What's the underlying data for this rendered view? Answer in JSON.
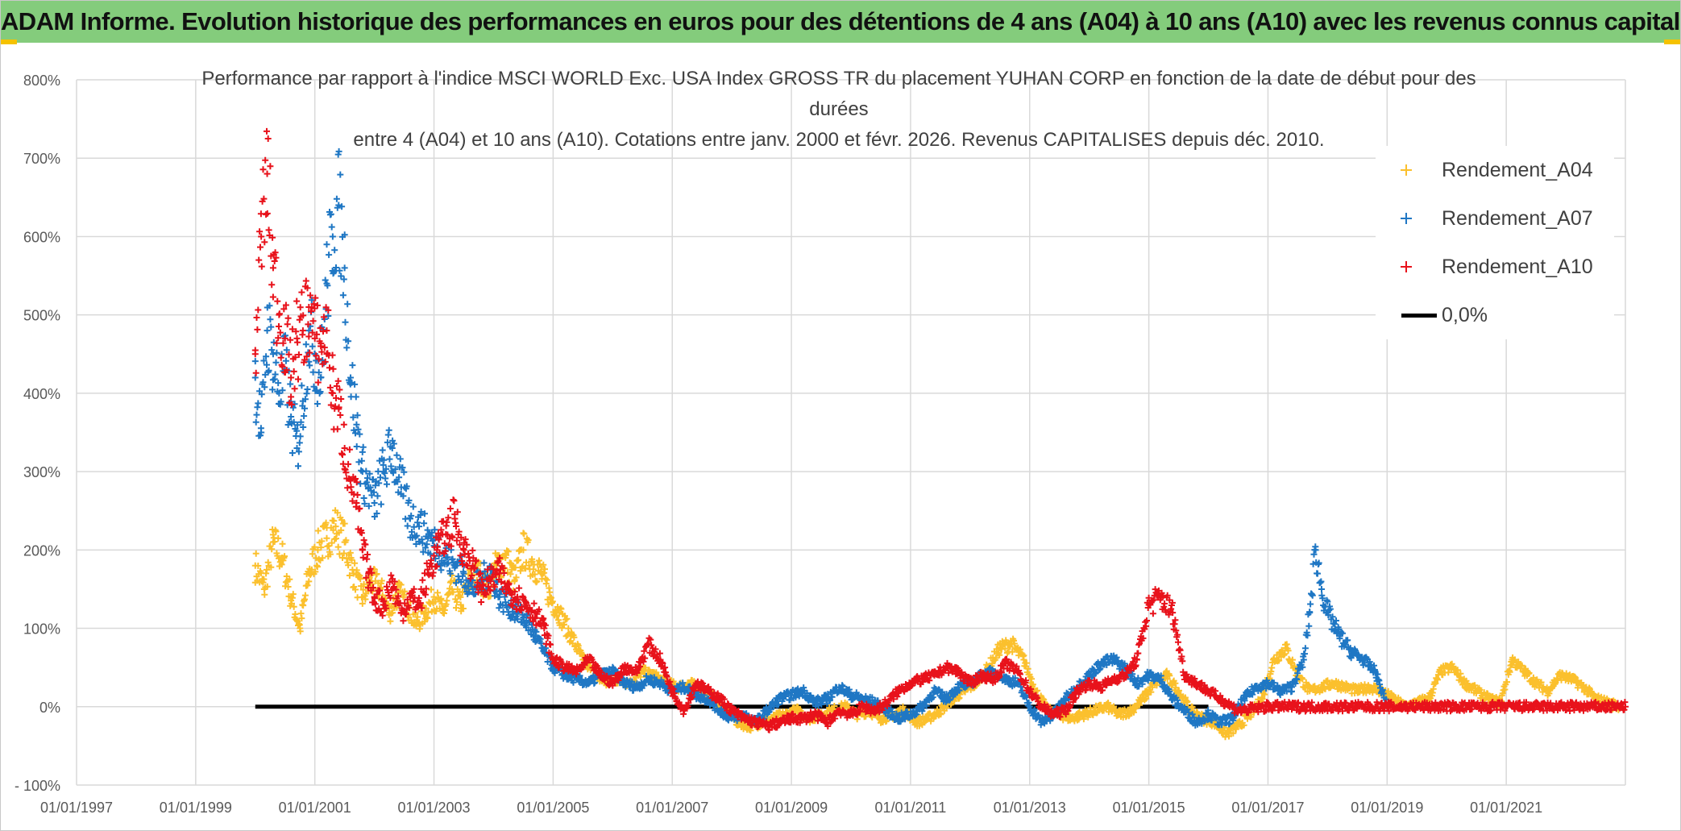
{
  "header": {
    "banner": "ADAM Informe. Evolution historique des performances en euros pour des détentions de 4 ans (A04) à 10 ans (A10) avec les revenus connus capitalisés"
  },
  "colors": {
    "banner_bg": "#84cc7c",
    "a04": "#fbc02d",
    "a07": "#1f77c4",
    "a10": "#e8121b",
    "zero": "#000000",
    "grid": "#d9d9d9"
  },
  "chart_data": {
    "type": "scatter",
    "title_lines": [
      "Performance par rapport à l'indice MSCI WORLD Exc. USA Index GROSS TR  du placement YUHAN CORP en fonction de la date de début pour des",
      "durées",
      "entre 4 (A04) et 10 ans (A10). Cotations entre janv. 2000 et févr. 2026. Revenus CAPITALISES depuis déc. 2010."
    ],
    "x_tick_labels": [
      "01/01/1997",
      "01/01/1999",
      "01/01/2001",
      "01/01/2003",
      "01/01/2005",
      "01/01/2007",
      "01/01/2009",
      "01/01/2011",
      "01/01/2013",
      "01/01/2015",
      "01/01/2017",
      "01/01/2019",
      "01/01/2021"
    ],
    "y_tick_labels": [
      "800%",
      "700%",
      "600%",
      "500%",
      "400%",
      "300%",
      "200%",
      "100%",
      "0%",
      "- 100%"
    ],
    "xlim": [
      1997.0,
      2023.0
    ],
    "ylim": [
      -100,
      800
    ],
    "grid": true,
    "legend_position": "top-right",
    "series": [
      {
        "name": "Rendement_A04",
        "color": "#fbc02d",
        "marker": "+",
        "x": [
          2000.0,
          2000.15,
          2000.3,
          2000.45,
          2000.6,
          2000.75,
          2000.9,
          2001.05,
          2001.2,
          2001.35,
          2001.5,
          2001.65,
          2001.8,
          2001.95,
          2002.1,
          2002.25,
          2002.4,
          2002.55,
          2002.7,
          2002.85,
          2003.0,
          2003.15,
          2003.3,
          2003.45,
          2003.6,
          2003.75,
          2003.9,
          2004.05,
          2004.2,
          2004.35,
          2004.5,
          2004.65,
          2004.8,
          2004.95,
          2005.1,
          2005.3,
          2005.5,
          2005.7,
          2005.9,
          2006.1,
          2006.3,
          2006.5,
          2006.7,
          2006.9,
          2007.1,
          2007.3,
          2007.5,
          2007.7,
          2007.9,
          2008.1,
          2008.3,
          2008.5,
          2008.7,
          2008.9,
          2009.1,
          2009.3,
          2009.5,
          2009.7,
          2009.9,
          2010.1,
          2010.3,
          2010.5,
          2010.7,
          2010.9,
          2011.1,
          2011.3,
          2011.5,
          2011.7,
          2011.9,
          2012.1,
          2012.3,
          2012.5,
          2012.7,
          2012.9,
          2013.1,
          2013.3,
          2013.5,
          2013.7,
          2013.9,
          2014.1,
          2014.3,
          2014.5,
          2014.7,
          2014.9,
          2015.1,
          2015.3,
          2015.5,
          2015.7,
          2015.9,
          2016.1,
          2016.3,
          2016.5,
          2016.7,
          2016.9,
          2017.1,
          2017.3,
          2017.5,
          2017.7,
          2017.9,
          2018.1,
          2018.3,
          2018.5,
          2018.7,
          2018.9,
          2019.1,
          2019.3,
          2019.5,
          2019.7,
          2019.9,
          2020.1,
          2020.3,
          2020.5,
          2020.7,
          2020.9,
          2021.1,
          2021.3,
          2021.5,
          2021.7,
          2021.9,
          2022.1,
          2022.3,
          2022.5,
          2022.7,
          2022.9
        ],
        "y": [
          180,
          150,
          210,
          190,
          140,
          100,
          170,
          200,
          215,
          230,
          210,
          170,
          140,
          160,
          150,
          120,
          145,
          130,
          105,
          120,
          140,
          120,
          150,
          130,
          160,
          170,
          150,
          180,
          190,
          160,
          200,
          185,
          170,
          140,
          120,
          90,
          60,
          40,
          30,
          35,
          30,
          45,
          40,
          30,
          25,
          30,
          20,
          10,
          -5,
          -20,
          -25,
          -20,
          -15,
          -10,
          -5,
          -15,
          -10,
          -5,
          0,
          -10,
          -5,
          -15,
          -10,
          -5,
          -20,
          -15,
          -5,
          10,
          20,
          30,
          50,
          75,
          80,
          60,
          20,
          -5,
          -10,
          -15,
          -10,
          -5,
          0,
          -10,
          -5,
          10,
          30,
          40,
          20,
          -5,
          -15,
          -20,
          -35,
          -25,
          -10,
          10,
          60,
          75,
          40,
          20,
          25,
          30,
          25,
          20,
          25,
          20,
          10,
          0,
          5,
          10,
          45,
          50,
          30,
          20,
          10,
          5,
          60,
          45,
          30,
          20,
          40,
          35,
          25,
          10,
          5,
          0
        ]
      },
      {
        "name": "Rendement_A07",
        "color": "#1f77c4",
        "marker": "+",
        "x": [
          2000.0,
          2000.1,
          2000.2,
          2000.3,
          2000.4,
          2000.5,
          2000.6,
          2000.7,
          2000.8,
          2000.9,
          2001.0,
          2001.1,
          2001.2,
          2001.3,
          2001.4,
          2001.5,
          2001.6,
          2001.7,
          2001.8,
          2001.9,
          2002.0,
          2002.15,
          2002.3,
          2002.45,
          2002.6,
          2002.75,
          2002.9,
          2003.05,
          2003.2,
          2003.35,
          2003.5,
          2003.65,
          2003.8,
          2003.95,
          2004.1,
          2004.25,
          2004.4,
          2004.55,
          2004.7,
          2004.85,
          2005.0,
          2005.2,
          2005.4,
          2005.6,
          2005.8,
          2006.0,
          2006.2,
          2006.4,
          2006.6,
          2006.8,
          2007.0,
          2007.2,
          2007.4,
          2007.6,
          2007.8,
          2008.0,
          2008.2,
          2008.4,
          2008.6,
          2008.8,
          2009.0,
          2009.2,
          2009.4,
          2009.6,
          2009.8,
          2010.0,
          2010.2,
          2010.4,
          2010.6,
          2010.8,
          2011.0,
          2011.2,
          2011.4,
          2011.6,
          2011.8,
          2012.0,
          2012.2,
          2012.4,
          2012.6,
          2012.8,
          2013.0,
          2013.2,
          2013.4,
          2013.6,
          2013.8,
          2014.0,
          2014.2,
          2014.4,
          2014.6,
          2014.8,
          2015.0,
          2015.2,
          2015.4,
          2015.6,
          2015.8,
          2016.0,
          2016.2,
          2016.4,
          2016.6,
          2016.8,
          2017.0,
          2017.2,
          2017.4,
          2017.6,
          2017.7,
          2017.8,
          2017.9,
          2018.0,
          2018.2,
          2018.4,
          2018.6,
          2018.8,
          2019.0
        ],
        "y": [
          420,
          350,
          480,
          450,
          400,
          430,
          370,
          330,
          390,
          480,
          450,
          420,
          540,
          600,
          640,
          560,
          420,
          360,
          300,
          280,
          260,
          300,
          330,
          280,
          240,
          230,
          215,
          205,
          190,
          180,
          170,
          150,
          160,
          175,
          140,
          130,
          120,
          110,
          90,
          70,
          50,
          40,
          35,
          30,
          40,
          45,
          30,
          25,
          35,
          30,
          20,
          25,
          15,
          10,
          -5,
          -15,
          -10,
          -20,
          -5,
          10,
          15,
          20,
          5,
          10,
          25,
          15,
          10,
          5,
          -5,
          -15,
          -10,
          0,
          20,
          10,
          25,
          30,
          40,
          45,
          35,
          30,
          0,
          -20,
          -10,
          10,
          25,
          40,
          55,
          60,
          50,
          30,
          40,
          35,
          10,
          -5,
          -20,
          -10,
          -20,
          -15,
          10,
          25,
          30,
          20,
          25,
          60,
          120,
          200,
          150,
          120,
          90,
          70,
          60,
          45,
          0
        ]
      },
      {
        "name": "Rendement_A10",
        "color": "#e8121b",
        "marker": "+",
        "x": [
          2000.0,
          2000.1,
          2000.2,
          2000.3,
          2000.4,
          2000.5,
          2000.6,
          2000.7,
          2000.8,
          2000.9,
          2001.0,
          2001.1,
          2001.2,
          2001.3,
          2001.4,
          2001.5,
          2001.6,
          2001.7,
          2001.8,
          2001.9,
          2002.0,
          2002.15,
          2002.3,
          2002.45,
          2002.6,
          2002.75,
          2002.9,
          2003.05,
          2003.2,
          2003.35,
          2003.5,
          2003.65,
          2003.8,
          2003.95,
          2004.1,
          2004.25,
          2004.4,
          2004.55,
          2004.7,
          2004.85,
          2005.0,
          2005.2,
          2005.4,
          2005.6,
          2005.8,
          2006.0,
          2006.2,
          2006.4,
          2006.6,
          2006.8,
          2007.0,
          2007.2,
          2007.4,
          2007.6,
          2007.8,
          2008.0,
          2008.2,
          2008.4,
          2008.6,
          2008.8,
          2009.0,
          2009.2,
          2009.4,
          2009.6,
          2009.8,
          2010.0,
          2010.2,
          2010.4,
          2010.6,
          2010.8,
          2011.0,
          2011.2,
          2011.4,
          2011.6,
          2011.8,
          2012.0,
          2012.2,
          2012.4,
          2012.6,
          2012.8,
          2013.0,
          2013.2,
          2013.4,
          2013.6,
          2013.8,
          2014.0,
          2014.2,
          2014.4,
          2014.6,
          2014.8,
          2015.0,
          2015.2,
          2015.4,
          2015.6,
          2015.8,
          2016.0,
          2016.5,
          2017.0,
          2017.5,
          2018.0,
          2018.5,
          2019.0,
          2019.5,
          2020.0,
          2020.5,
          2021.0,
          2021.5,
          2022.0,
          2022.5,
          2023.0
        ],
        "y": [
          450,
          600,
          680,
          560,
          500,
          470,
          420,
          470,
          480,
          510,
          470,
          460,
          480,
          400,
          380,
          330,
          290,
          260,
          200,
          170,
          140,
          130,
          160,
          120,
          140,
          130,
          170,
          200,
          220,
          240,
          200,
          180,
          150,
          160,
          170,
          150,
          140,
          130,
          120,
          100,
          60,
          50,
          45,
          60,
          40,
          30,
          50,
          45,
          80,
          60,
          20,
          -5,
          30,
          20,
          10,
          -5,
          -15,
          -20,
          -25,
          -20,
          -15,
          -15,
          -10,
          -20,
          -5,
          -10,
          0,
          -5,
          5,
          20,
          30,
          35,
          40,
          50,
          45,
          30,
          40,
          35,
          55,
          45,
          20,
          0,
          -10,
          -5,
          20,
          30,
          25,
          35,
          40,
          60,
          130,
          140,
          120,
          40,
          30,
          20,
          -5,
          0,
          0,
          0,
          0,
          0,
          0,
          0,
          0,
          0,
          0,
          0,
          0,
          0
        ]
      },
      {
        "name": "0,0%",
        "color": "#000000",
        "marker": "line",
        "x": [
          2000.0,
          2016.0
        ],
        "y": [
          0,
          0
        ]
      }
    ]
  }
}
